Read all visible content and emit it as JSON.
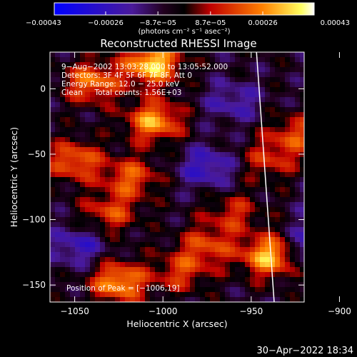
{
  "chart_data": {
    "type": "heatmap",
    "title": "Reconstructed RHESSI Image",
    "xlabel": "Heliocentric X (arcsec)",
    "ylabel": "Heliocentric Y (arcsec)",
    "xlim": [
      -1064,
      -920
    ],
    "ylim": [
      -163,
      28
    ],
    "x_ticks": [
      -1050,
      -1000,
      -950,
      -900
    ],
    "x_tick_labels": [
      "−1050",
      "−1000",
      "−950",
      "−900"
    ],
    "y_ticks": [
      0,
      -50,
      -100,
      -150
    ],
    "y_tick_labels": [
      "0",
      "−50",
      "−100",
      "−150"
    ],
    "colorbar": {
      "min": -0.00043,
      "max": 0.00043,
      "colormap": "blue-purple-red-orange-yellow-white",
      "ticks": [
        -0.00043,
        -0.00026,
        -8.7e-05,
        8.7e-05,
        0.00026,
        0.00043
      ],
      "tick_labels": [
        "−0.00043",
        "−0.00026",
        "−8.7e−05",
        "8.7e−05",
        "0.00026",
        "0.00043"
      ],
      "unit_label": "(photons cm⁻² s⁻¹ asec⁻²)"
    },
    "annotations": [
      "9−Aug−2002 13:03:28.000 to 13:05:52.000",
      "Detectors: 3F 4F 5F 6F 7F 8F, Att 0",
      "Energy Range: 12.0 − 25.0 keV",
      "Clean     Total counts: 1.56E+03"
    ],
    "peak_label": "Position of Peak = [−1006,19]",
    "limb_line": {
      "x_top": -947,
      "x_bottom": -937
    },
    "bright_regions": [
      {
        "x": -1006,
        "y": 19,
        "value": 0.00043
      },
      {
        "x": -1040,
        "y": 5,
        "value": 0.0003
      },
      {
        "x": -1005,
        "y": -25,
        "value": 0.00035
      },
      {
        "x": -1050,
        "y": -55,
        "value": 0.00028
      },
      {
        "x": -1018,
        "y": -68,
        "value": 0.00025
      },
      {
        "x": -1030,
        "y": -95,
        "value": 0.00022
      },
      {
        "x": -940,
        "y": -128,
        "value": 0.00038
      },
      {
        "x": -1025,
        "y": -148,
        "value": 0.00035
      },
      {
        "x": -990,
        "y": -140,
        "value": 0.0002
      },
      {
        "x": -960,
        "y": -95,
        "value": 0.00018
      },
      {
        "x": -925,
        "y": -35,
        "value": 0.00022
      },
      {
        "x": -940,
        "y": -55,
        "value": 0.00018
      },
      {
        "x": -975,
        "y": -120,
        "value": 0.00022
      }
    ],
    "dark_regions": [
      {
        "x": -910,
        "y": -120,
        "value": -0.00035
      },
      {
        "x": -975,
        "y": -60,
        "value": -0.0002
      },
      {
        "x": -1048,
        "y": -120,
        "value": -0.00018
      },
      {
        "x": -960,
        "y": -10,
        "value": -0.00015
      },
      {
        "x": -900,
        "y": -90,
        "value": -0.0002
      }
    ]
  },
  "footer": {
    "date": "30−Apr−2022 18:34"
  }
}
